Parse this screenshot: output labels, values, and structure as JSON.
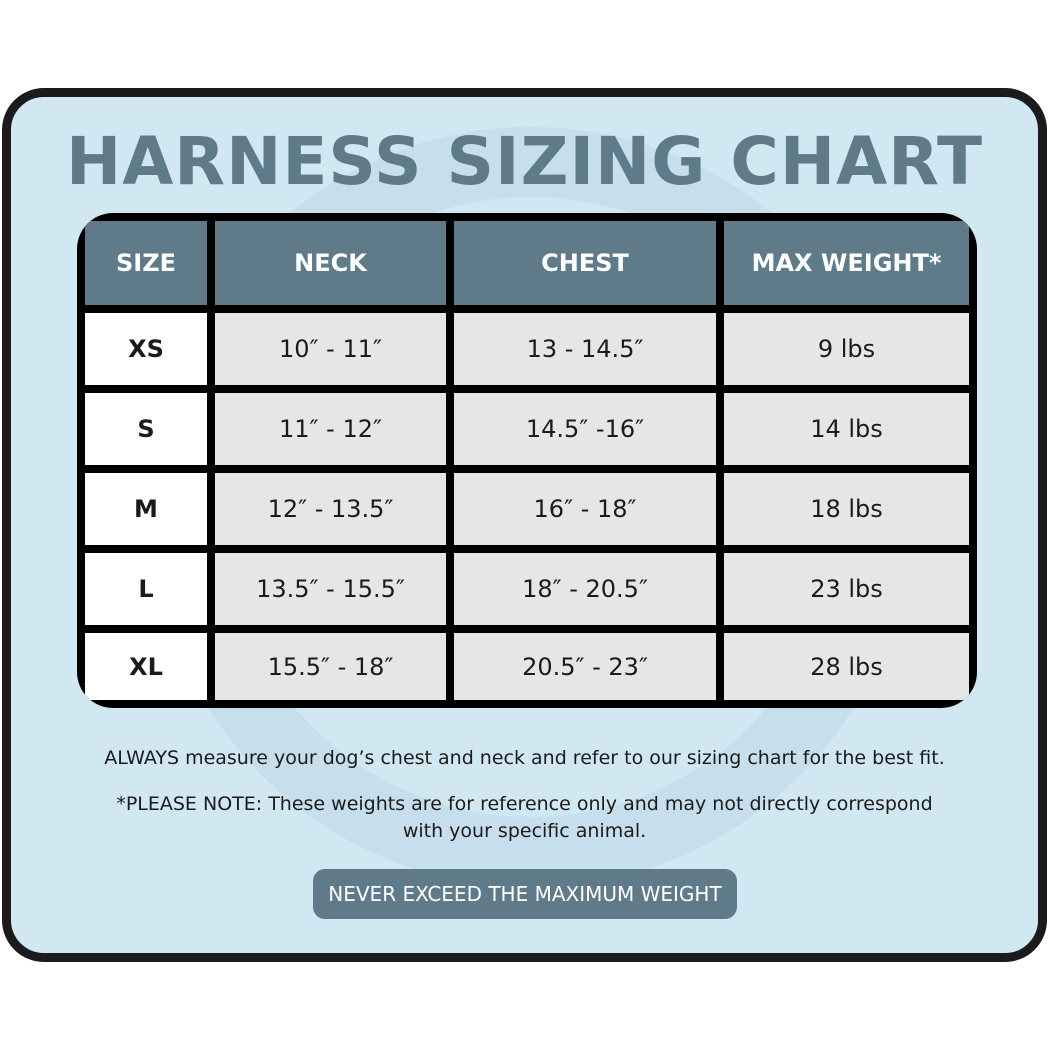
{
  "title": "HARNESS SIZING CHART",
  "colors": {
    "accent": "#5f7a88",
    "background": "#d1e7f2",
    "border": "#1b1b1b"
  },
  "table": {
    "headers": [
      "SIZE",
      "NECK",
      "CHEST",
      "MAX WEIGHT*"
    ],
    "rows": [
      [
        "XS",
        "10″ - 11″",
        "13 - 14.5″",
        "9 lbs"
      ],
      [
        "S",
        "11″ - 12″",
        "14.5″ -16″",
        "14 lbs"
      ],
      [
        "M",
        "12″ - 13.5″",
        "16″ - 18″",
        "18 lbs"
      ],
      [
        "L",
        "13.5″ - 15.5″",
        "18″ - 20.5″",
        "23 lbs"
      ],
      [
        "XL",
        "15.5″ - 18″",
        "20.5″ - 23″",
        "28 lbs"
      ]
    ]
  },
  "notes": {
    "measure": "ALWAYS measure your dog’s chest and neck and refer to our sizing chart for the best fit.",
    "disclaimer_line1": "*PLEASE NOTE: These weights are for reference only and may not directly correspond",
    "disclaimer_line2": "with your specific animal."
  },
  "banner": "NEVER EXCEED THE MAXIMUM WEIGHT"
}
